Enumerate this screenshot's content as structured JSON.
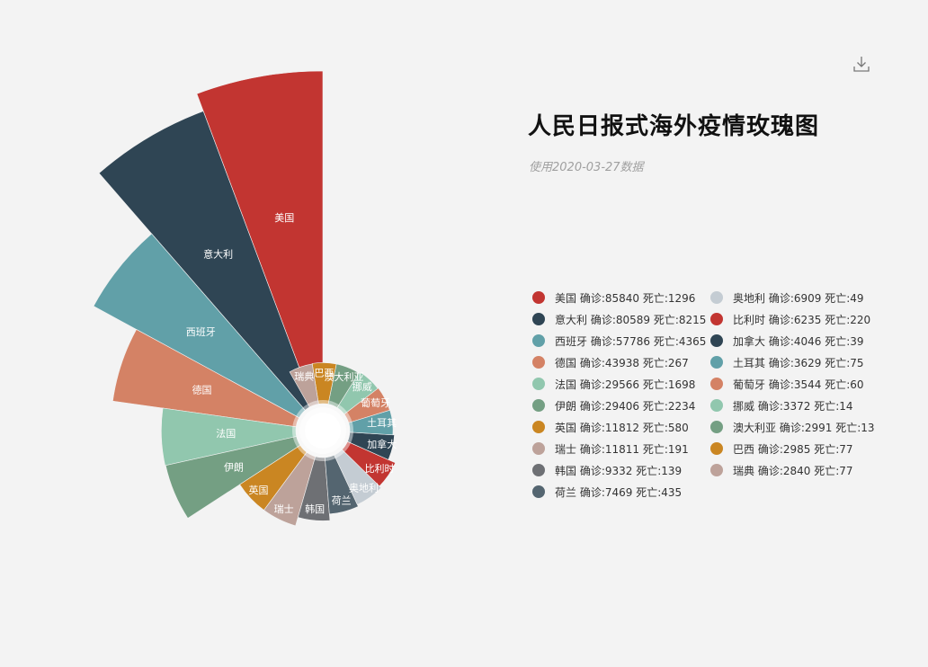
{
  "page": {
    "title": "人民日报式海外疫情玫瑰图",
    "subtitle": "使用2020-03-27数据"
  },
  "toolbox": {
    "icon": "download-icon"
  },
  "chart_data": {
    "type": "pie",
    "variant": "nightingale-rose",
    "series": [
      {
        "name": "美国",
        "confirmed": 85840,
        "deaths": 1296,
        "color": "#c23531",
        "legend": "美国 确诊:85840 死亡:1296"
      },
      {
        "name": "意大利",
        "confirmed": 80589,
        "deaths": 8215,
        "color": "#2f4554",
        "legend": "意大利 确诊:80589 死亡:8215"
      },
      {
        "name": "西班牙",
        "confirmed": 57786,
        "deaths": 4365,
        "color": "#61a0a8",
        "legend": "西班牙 确诊:57786 死亡:4365"
      },
      {
        "name": "德国",
        "confirmed": 43938,
        "deaths": 267,
        "color": "#d48265",
        "legend": "德国 确诊:43938 死亡:267"
      },
      {
        "name": "法国",
        "confirmed": 29566,
        "deaths": 1698,
        "color": "#91c7ae",
        "legend": "法国 确诊:29566 死亡:1698"
      },
      {
        "name": "伊朗",
        "confirmed": 29406,
        "deaths": 2234,
        "color": "#749f83",
        "legend": "伊朗 确诊:29406 死亡:2234"
      },
      {
        "name": "英国",
        "confirmed": 11812,
        "deaths": 580,
        "color": "#ca8622",
        "legend": "英国 确诊:11812 死亡:580"
      },
      {
        "name": "瑞士",
        "confirmed": 11811,
        "deaths": 191,
        "color": "#bda29a",
        "legend": "瑞士 确诊:11811 死亡:191"
      },
      {
        "name": "韩国",
        "confirmed": 9332,
        "deaths": 139,
        "color": "#6e7074",
        "legend": "韩国 确诊:9332 死亡:139"
      },
      {
        "name": "荷兰",
        "confirmed": 7469,
        "deaths": 435,
        "color": "#546570",
        "legend": "荷兰 确诊:7469 死亡:435"
      },
      {
        "name": "奥地利",
        "confirmed": 6909,
        "deaths": 49,
        "color": "#c4ccd3",
        "legend": "奥地利 确诊:6909 死亡:49"
      },
      {
        "name": "比利时",
        "confirmed": 6235,
        "deaths": 220,
        "color": "#c23531",
        "legend": "比利时 确诊:6235 死亡:220"
      },
      {
        "name": "加拿大",
        "confirmed": 4046,
        "deaths": 39,
        "color": "#2f4554",
        "legend": "加拿大 确诊:4046 死亡:39"
      },
      {
        "name": "土耳其",
        "confirmed": 3629,
        "deaths": 75,
        "color": "#61a0a8",
        "legend": "土耳其 确诊:3629 死亡:75"
      },
      {
        "name": "葡萄牙",
        "confirmed": 3544,
        "deaths": 60,
        "color": "#d48265",
        "legend": "葡萄牙 确诊:3544 死亡:60"
      },
      {
        "name": "挪威",
        "confirmed": 3372,
        "deaths": 14,
        "color": "#91c7ae",
        "legend": "挪威 确诊:3372 死亡:14"
      },
      {
        "name": "澳大利亚",
        "confirmed": 2991,
        "deaths": 13,
        "color": "#749f83",
        "legend": "澳大利亚 确诊:2991 死亡:13"
      },
      {
        "name": "巴西",
        "confirmed": 2985,
        "deaths": 77,
        "color": "#ca8622",
        "legend": "巴西 确诊:2985 死亡:77"
      },
      {
        "name": "瑞典",
        "confirmed": 2840,
        "deaths": 77,
        "color": "#bda29a",
        "legend": "瑞典 确诊:2840 死亡:77"
      }
    ]
  }
}
